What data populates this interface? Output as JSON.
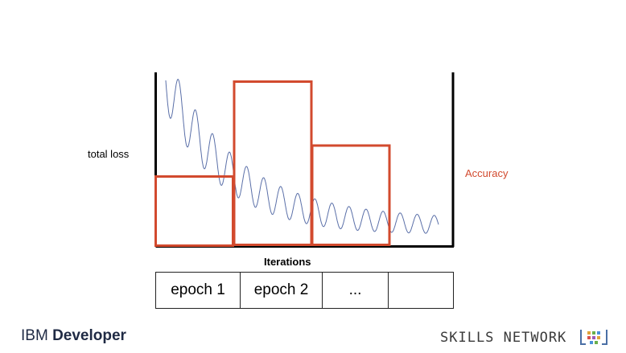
{
  "diagram": {
    "y_label": "total loss",
    "x_label": "Iterations",
    "accuracy_label": "Accuracy",
    "epochs": [
      "epoch 1",
      "epoch 2",
      "...",
      ""
    ]
  },
  "branding": {
    "left_prefix": "IBM ",
    "left_strong": "Developer",
    "right": "SKILLS NETWORK"
  },
  "colors": {
    "accuracy": "#d24a2e",
    "loss_curve": "#5a6fa8",
    "axis": "#000000"
  }
}
